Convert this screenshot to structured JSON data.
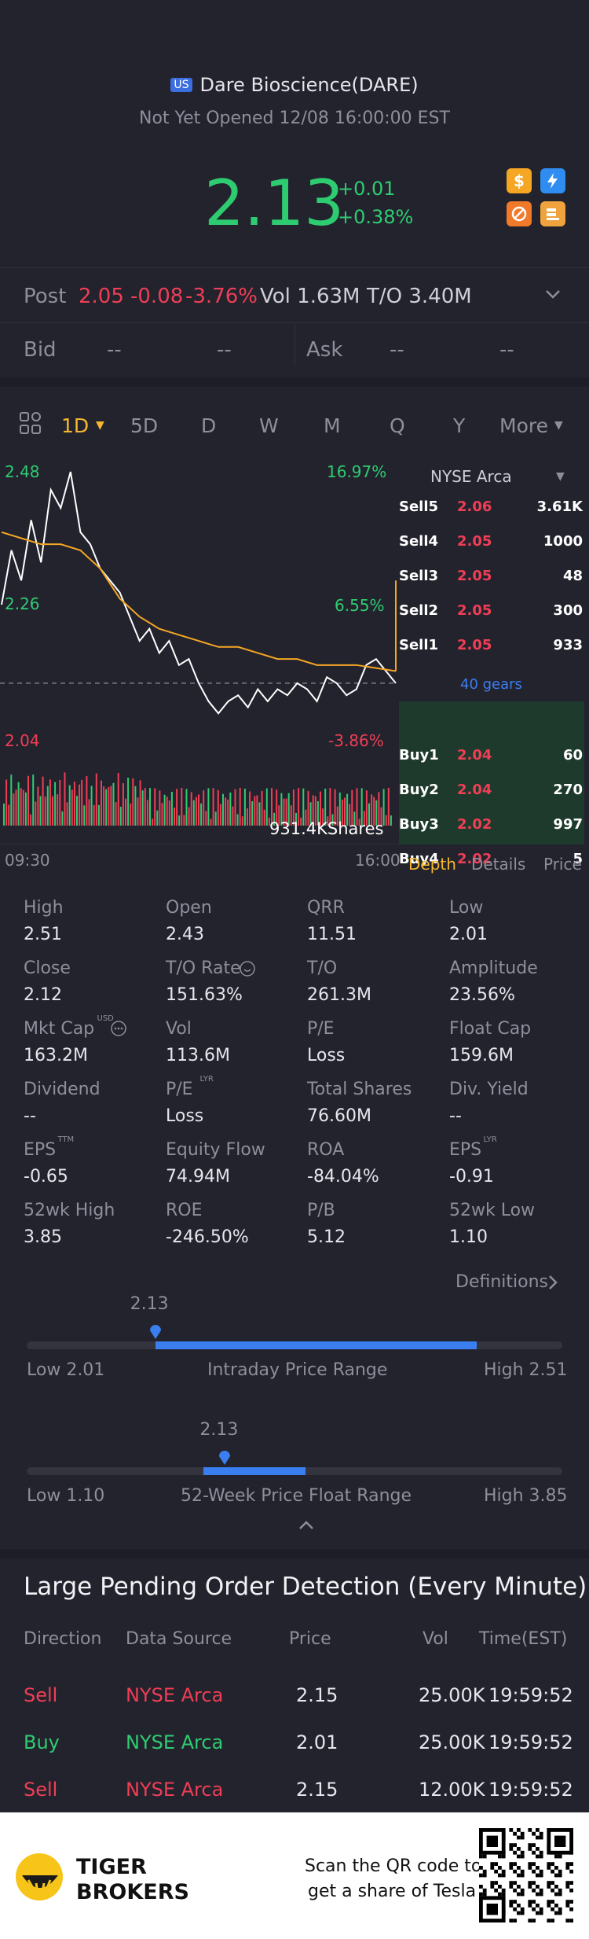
{
  "header": {
    "country_badge": "US",
    "title": "Dare Bioscience(DARE)",
    "status": "Not Yet Opened 12/08 16:00:00 EST",
    "price": "2.13",
    "change": "+0.01",
    "change_pct": "+0.38%",
    "icons": [
      "dollar-icon",
      "lightning-icon",
      "no-short-icon",
      "stack-icon"
    ]
  },
  "post": {
    "label": "Post",
    "price": "2.05",
    "change": "-0.08",
    "change_pct": "-3.76%",
    "vol": "Vol 1.63M",
    "turnover": "T/O 3.40M"
  },
  "bidask": {
    "bid_label": "Bid",
    "ask_label": "Ask",
    "empty": "--"
  },
  "tabs": {
    "active": "1D",
    "items": [
      "5D",
      "D",
      "W",
      "M",
      "Q",
      "Y"
    ],
    "more": "More"
  },
  "chart": {
    "exchange": "NYSE Arca",
    "y_top": "2.48",
    "y_mid": "2.26",
    "y_bottom": "2.04",
    "pct_top": "16.97%",
    "pct_mid": "6.55%",
    "pct_bottom": "-3.86%",
    "volume_label": "931.4KShares",
    "time_start": "09:30",
    "time_end": "16:00"
  },
  "chart_data": {
    "type": "line",
    "title": "",
    "xlabel": "",
    "ylabel": "",
    "x_range": [
      "09:30",
      "16:00"
    ],
    "ylim": [
      2.04,
      2.48
    ],
    "series": [
      {
        "values": [
          2.26,
          2.35,
          2.3,
          2.4,
          2.33,
          2.45,
          2.42,
          2.48,
          2.38,
          2.36,
          2.32,
          2.3,
          2.28,
          2.24,
          2.2,
          2.22,
          2.18,
          2.2,
          2.16,
          2.17,
          2.13,
          2.1,
          2.08,
          2.1,
          2.11,
          2.09,
          2.12,
          2.1,
          2.12,
          2.11,
          2.13,
          2.12,
          2.1,
          2.14,
          2.13,
          2.11,
          2.12,
          2.16,
          2.17,
          2.15,
          2.13
        ]
      },
      {
        "values": [
          2.38,
          2.37,
          2.36,
          2.36,
          2.35,
          2.32,
          2.27,
          2.24,
          2.22,
          2.21,
          2.2,
          2.19,
          2.19,
          2.18,
          2.17,
          2.17,
          2.16,
          2.16,
          2.16,
          2.155,
          2.15
        ]
      }
    ],
    "reference_line": 2.13
  },
  "orderbook": {
    "asks": [
      {
        "label": "Sell5",
        "price": "2.06",
        "vol": "3.61K"
      },
      {
        "label": "Sell4",
        "price": "2.05",
        "vol": "1000"
      },
      {
        "label": "Sell3",
        "price": "2.05",
        "vol": "48"
      },
      {
        "label": "Sell2",
        "price": "2.05",
        "vol": "300"
      },
      {
        "label": "Sell1",
        "price": "2.05",
        "vol": "933"
      }
    ],
    "gears": "40 gears",
    "bids": [
      {
        "label": "Buy1",
        "price": "2.04",
        "vol": "60"
      },
      {
        "label": "Buy2",
        "price": "2.04",
        "vol": "270"
      },
      {
        "label": "Buy3",
        "price": "2.02",
        "vol": "997"
      },
      {
        "label": "Buy4",
        "price": "2.02",
        "vol": "5"
      }
    ],
    "tabs": [
      "Depth",
      "Details",
      "Price"
    ]
  },
  "stats": [
    {
      "label": "High",
      "value": "2.51"
    },
    {
      "label": "Open",
      "value": "2.43"
    },
    {
      "label": "QRR",
      "value": "11.51"
    },
    {
      "label": "Low",
      "value": "2.01"
    },
    {
      "label": "Close",
      "value": "2.12"
    },
    {
      "label": "T/O Rate",
      "value": "151.63%"
    },
    {
      "label": "T/O",
      "value": "261.3M"
    },
    {
      "label": "Amplitude",
      "value": "23.56%"
    },
    {
      "label": "Mkt Cap",
      "value": "163.2M",
      "sup": "USD"
    },
    {
      "label": "Vol",
      "value": "113.6M"
    },
    {
      "label": "P/E",
      "value": "Loss"
    },
    {
      "label": "Float Cap",
      "value": "159.6M"
    },
    {
      "label": "Dividend",
      "value": "--"
    },
    {
      "label": "P/E",
      "value": "Loss",
      "sup": "LYR"
    },
    {
      "label": "Total Shares",
      "value": "76.60M"
    },
    {
      "label": "Div. Yield",
      "value": "--"
    },
    {
      "label": "EPS",
      "value": "-0.65",
      "sup": "TTM"
    },
    {
      "label": "Equity Flow",
      "value": "74.94M"
    },
    {
      "label": "ROA",
      "value": "-84.04%"
    },
    {
      "label": "EPS",
      "value": "-0.91",
      "sup": "LYR"
    },
    {
      "label": "52wk High",
      "value": "3.85"
    },
    {
      "label": "ROE",
      "value": "-246.50%"
    },
    {
      "label": "P/B",
      "value": "5.12"
    },
    {
      "label": "52wk Low",
      "value": "1.10"
    }
  ],
  "definitions": "Definitions",
  "intraday": {
    "current": "2.13",
    "low": "Low 2.01",
    "title": "Intraday Price Range",
    "high": "High 2.51",
    "fill_from": 0.24,
    "fill_to": 0.84,
    "marker": 0.24
  },
  "week52": {
    "current": "2.13",
    "low": "Low 1.10",
    "title": "52-Week Price Float Range",
    "high": "High 3.85",
    "fill_from": 0.33,
    "fill_to": 0.52,
    "marker": 0.37
  },
  "pending": {
    "title": "Large Pending Order Detection (Every Minute)",
    "headers": [
      "Direction",
      "Data Source",
      "Price",
      "Vol",
      "Time(EST)"
    ],
    "rows": [
      {
        "direction": "Sell",
        "source": "NYSE Arca",
        "price": "2.15",
        "vol": "25.00K",
        "time": "19:59:52"
      },
      {
        "direction": "Buy",
        "source": "NYSE Arca",
        "price": "2.01",
        "vol": "25.00K",
        "time": "19:59:52"
      },
      {
        "direction": "Sell",
        "source": "NYSE Arca",
        "price": "2.15",
        "vol": "12.00K",
        "time": "19:59:52"
      }
    ]
  },
  "footer": {
    "brand_line1": "TIGER",
    "brand_line2": "BROKERS",
    "promo_line1": "Scan the QR code to",
    "promo_line2": "get a share of Tesla"
  },
  "colors": {
    "up": "#2ecc71",
    "down": "#ef3e55",
    "accent": "#f5b72e",
    "blue": "#3b7ef0"
  }
}
